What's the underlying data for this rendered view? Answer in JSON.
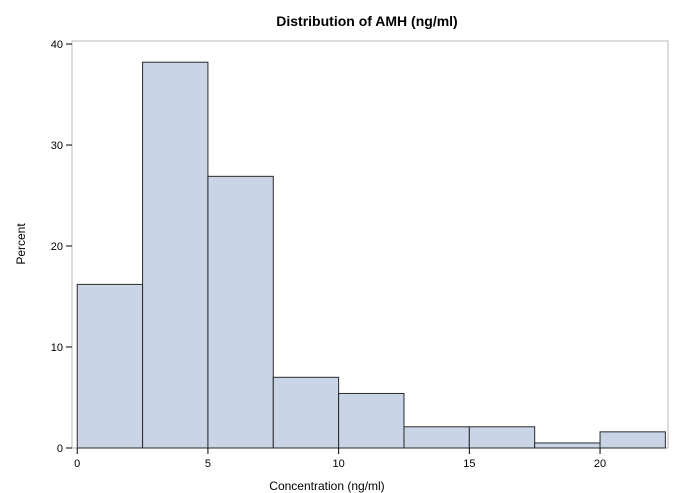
{
  "chart_data": {
    "type": "bar",
    "title": "Distribution of AMH (ng/ml)",
    "xlabel": "Concentration (ng/ml)",
    "ylabel": "Percent",
    "bins": [
      {
        "start": 0,
        "end": 2.5,
        "value": 16.2
      },
      {
        "start": 2.5,
        "end": 5,
        "value": 38.2
      },
      {
        "start": 5,
        "end": 7.5,
        "value": 26.9
      },
      {
        "start": 7.5,
        "end": 10,
        "value": 7.0
      },
      {
        "start": 10,
        "end": 12.5,
        "value": 5.4
      },
      {
        "start": 12.5,
        "end": 15,
        "value": 2.1
      },
      {
        "start": 15,
        "end": 17.5,
        "value": 2.1
      },
      {
        "start": 17.5,
        "end": 20,
        "value": 0.5
      },
      {
        "start": 20,
        "end": 22.5,
        "value": 1.6
      }
    ],
    "xlim": [
      -0.2,
      22.6
    ],
    "ylim": [
      0,
      40.3
    ],
    "xticks": [
      "0",
      "5",
      "10",
      "15",
      "20"
    ],
    "yticks": [
      "0",
      "10",
      "20",
      "30",
      "40"
    ],
    "grid": false,
    "legend": "none",
    "colors": {
      "bar_fill": "#c9d4e6",
      "bar_stroke": "#2a2a2a",
      "frame": "#b8b8b8",
      "axis": "#000000"
    }
  }
}
